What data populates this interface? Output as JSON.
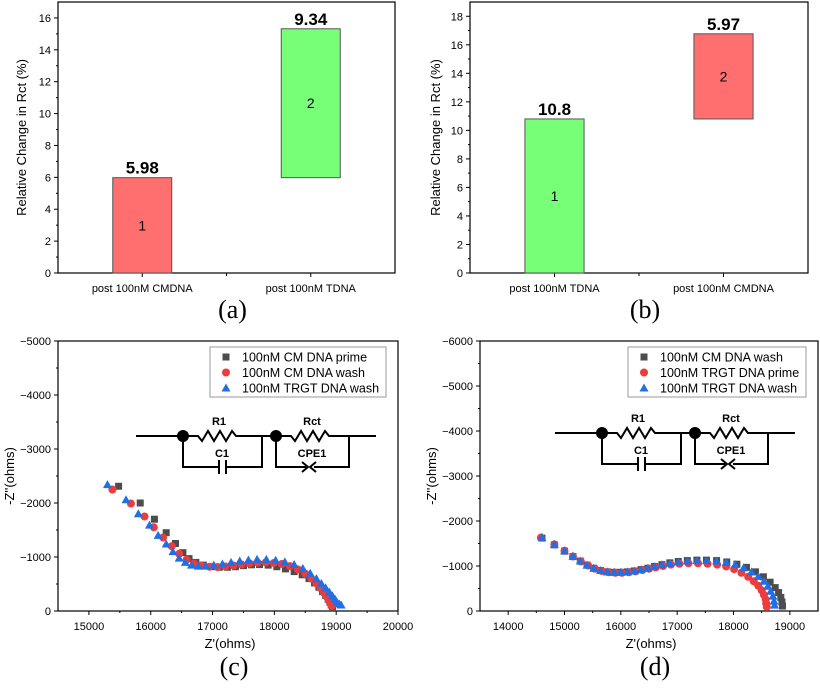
{
  "chart_data": [
    {
      "id": "a",
      "type": "bar",
      "subtype": "waterfall",
      "panel_label": "(a)",
      "title": "",
      "xlabel": "",
      "ylabel": "Relative Change in Rct (%)",
      "ylim": [
        0,
        17
      ],
      "yticks": [
        0,
        2,
        4,
        6,
        8,
        10,
        12,
        14,
        16
      ],
      "categories": [
        "post 100nM CMDNA",
        "post 100nM TDNA"
      ],
      "bars": [
        {
          "index_label": "1",
          "start": 0,
          "value": 5.98,
          "value_label": "5.98",
          "color": "#ff6f6f"
        },
        {
          "index_label": "2",
          "start": 5.98,
          "value": 9.34,
          "value_label": "9.34",
          "color": "#77ff77"
        }
      ],
      "grid": false
    },
    {
      "id": "b",
      "type": "bar",
      "subtype": "waterfall",
      "panel_label": "(b)",
      "title": "",
      "xlabel": "",
      "ylabel": "Relative Change in Rct (%)",
      "ylim": [
        0,
        19
      ],
      "yticks": [
        0,
        2,
        4,
        6,
        8,
        10,
        12,
        14,
        16,
        18
      ],
      "categories": [
        "post 100nM TDNA",
        "post 100nM CMDNA"
      ],
      "bars": [
        {
          "index_label": "1",
          "start": 0,
          "value": 10.8,
          "value_label": "10.8",
          "color": "#77ff77"
        },
        {
          "index_label": "2",
          "start": 10.8,
          "value": 5.97,
          "value_label": "5.97",
          "color": "#ff6f6f"
        }
      ],
      "grid": false
    },
    {
      "id": "c",
      "type": "scatter",
      "panel_label": "(c)",
      "xlabel": "Z'(ohms)",
      "ylabel": "-Z''(ohms)",
      "xlim": [
        14500,
        20000
      ],
      "ylim": [
        0,
        -5000
      ],
      "xticks": [
        15000,
        16000,
        17000,
        18000,
        19000,
        20000
      ],
      "yticks": [
        0,
        -1000,
        -2000,
        -3000,
        -4000,
        -5000
      ],
      "legend_position": "top-right",
      "series": [
        {
          "name": "100nM CM DNA prime",
          "marker": "square",
          "color": "#4d4d4d",
          "x": [
            15480,
            15830,
            16060,
            16250,
            16400,
            16520,
            16620,
            16730,
            16850,
            16980,
            17110,
            17240,
            17370,
            17500,
            17630,
            17760,
            17900,
            18040,
            18180,
            18320,
            18450,
            18560,
            18650,
            18720,
            18780,
            18830,
            18870,
            18900,
            18920,
            18940
          ],
          "y": [
            -2310,
            -2000,
            -1700,
            -1450,
            -1250,
            -1080,
            -970,
            -900,
            -850,
            -820,
            -810,
            -810,
            -820,
            -840,
            -855,
            -860,
            -850,
            -820,
            -780,
            -730,
            -670,
            -600,
            -520,
            -440,
            -360,
            -290,
            -220,
            -160,
            -110,
            -80
          ]
        },
        {
          "name": "100nM CM DNA wash",
          "marker": "circle",
          "color": "#ee3b3b",
          "x": [
            15380,
            15680,
            15900,
            16050,
            16200,
            16340,
            16460,
            16580,
            16700,
            16820,
            16950,
            17080,
            17210,
            17340,
            17470,
            17600,
            17730,
            17860,
            17990,
            18120,
            18250,
            18380,
            18500,
            18600,
            18680,
            18750,
            18800,
            18850,
            18880,
            18910,
            18930
          ],
          "y": [
            -2250,
            -1990,
            -1750,
            -1550,
            -1360,
            -1200,
            -1060,
            -950,
            -880,
            -840,
            -820,
            -815,
            -825,
            -840,
            -860,
            -880,
            -895,
            -900,
            -890,
            -870,
            -830,
            -770,
            -690,
            -600,
            -510,
            -420,
            -340,
            -260,
            -190,
            -130,
            -90
          ]
        },
        {
          "name": "100nM TRGT DNA wash",
          "marker": "triangle",
          "color": "#1f6fe5",
          "x": [
            15300,
            15600,
            15800,
            15980,
            16120,
            16250,
            16360,
            16460,
            16560,
            16660,
            16770,
            16890,
            17020,
            17160,
            17300,
            17440,
            17580,
            17720,
            17870,
            18020,
            18170,
            18320,
            18460,
            18580,
            18680,
            18760,
            18830,
            18890,
            18940,
            18980,
            19010,
            19050,
            19080
          ],
          "y": [
            -2340,
            -2060,
            -1800,
            -1590,
            -1400,
            -1240,
            -1100,
            -980,
            -900,
            -850,
            -830,
            -830,
            -850,
            -870,
            -900,
            -925,
            -945,
            -955,
            -955,
            -940,
            -910,
            -860,
            -790,
            -700,
            -600,
            -510,
            -430,
            -350,
            -280,
            -220,
            -170,
            -130,
            -110
          ]
        }
      ],
      "inset": {
        "type": "circuit",
        "labels": [
          "R1",
          "C1",
          "Rct",
          "CPE1"
        ]
      }
    },
    {
      "id": "d",
      "type": "scatter",
      "panel_label": "(d)",
      "xlabel": "Z'(ohms)",
      "ylabel": "-Z''(ohms)",
      "xlim": [
        13500,
        19500
      ],
      "ylim": [
        0,
        -6000
      ],
      "xticks": [
        14000,
        15000,
        16000,
        17000,
        18000,
        19000
      ],
      "yticks": [
        0,
        -1000,
        -2000,
        -3000,
        -4000,
        -5000,
        -6000
      ],
      "legend_position": "top-right",
      "series": [
        {
          "name": "100nM CM DNA wash",
          "marker": "square",
          "color": "#4d4d4d",
          "x": [
            14600,
            14820,
            15000,
            15150,
            15280,
            15400,
            15520,
            15640,
            15760,
            15880,
            16000,
            16120,
            16240,
            16360,
            16480,
            16600,
            16730,
            16870,
            17020,
            17180,
            17350,
            17520,
            17700,
            17880,
            18060,
            18230,
            18390,
            18530,
            18650,
            18740,
            18800,
            18840,
            18860,
            18870
          ],
          "y": [
            -1620,
            -1470,
            -1330,
            -1210,
            -1110,
            -1020,
            -950,
            -900,
            -870,
            -860,
            -860,
            -870,
            -890,
            -920,
            -950,
            -990,
            -1030,
            -1070,
            -1100,
            -1120,
            -1130,
            -1130,
            -1120,
            -1090,
            -1040,
            -970,
            -870,
            -760,
            -640,
            -520,
            -410,
            -300,
            -200,
            -110
          ]
        },
        {
          "name": "100nM TRGT DNA prime",
          "marker": "circle",
          "color": "#ee3b3b",
          "x": [
            14580,
            14820,
            15000,
            15150,
            15290,
            15420,
            15540,
            15660,
            15780,
            15900,
            16020,
            16140,
            16260,
            16380,
            16500,
            16620,
            16750,
            16890,
            17040,
            17200,
            17370,
            17540,
            17710,
            17870,
            18010,
            18140,
            18260,
            18360,
            18440,
            18500,
            18540,
            18570,
            18580,
            18590
          ],
          "y": [
            -1630,
            -1480,
            -1340,
            -1210,
            -1100,
            -1010,
            -940,
            -890,
            -860,
            -850,
            -850,
            -860,
            -880,
            -910,
            -940,
            -970,
            -1000,
            -1030,
            -1050,
            -1060,
            -1060,
            -1050,
            -1030,
            -990,
            -930,
            -850,
            -760,
            -660,
            -560,
            -460,
            -360,
            -260,
            -170,
            -90
          ]
        },
        {
          "name": "100nM TRGT DNA wash",
          "marker": "triangle",
          "color": "#1f6fe5",
          "x": [
            14600,
            14820,
            15000,
            15150,
            15280,
            15400,
            15520,
            15640,
            15760,
            15880,
            16000,
            16120,
            16240,
            16360,
            16480,
            16600,
            16730,
            16870,
            17020,
            17180,
            17350,
            17520,
            17700,
            17870,
            18030,
            18180,
            18320,
            18440,
            18540,
            18610,
            18660,
            18700,
            18720,
            18730
          ],
          "y": [
            -1640,
            -1480,
            -1340,
            -1220,
            -1110,
            -1020,
            -950,
            -900,
            -870,
            -860,
            -860,
            -870,
            -890,
            -920,
            -950,
            -990,
            -1030,
            -1060,
            -1090,
            -1110,
            -1120,
            -1120,
            -1110,
            -1080,
            -1030,
            -960,
            -870,
            -770,
            -660,
            -550,
            -440,
            -330,
            -220,
            -130
          ]
        }
      ],
      "inset": {
        "type": "circuit",
        "labels": [
          "R1",
          "C1",
          "Rct",
          "CPE1"
        ]
      }
    }
  ]
}
